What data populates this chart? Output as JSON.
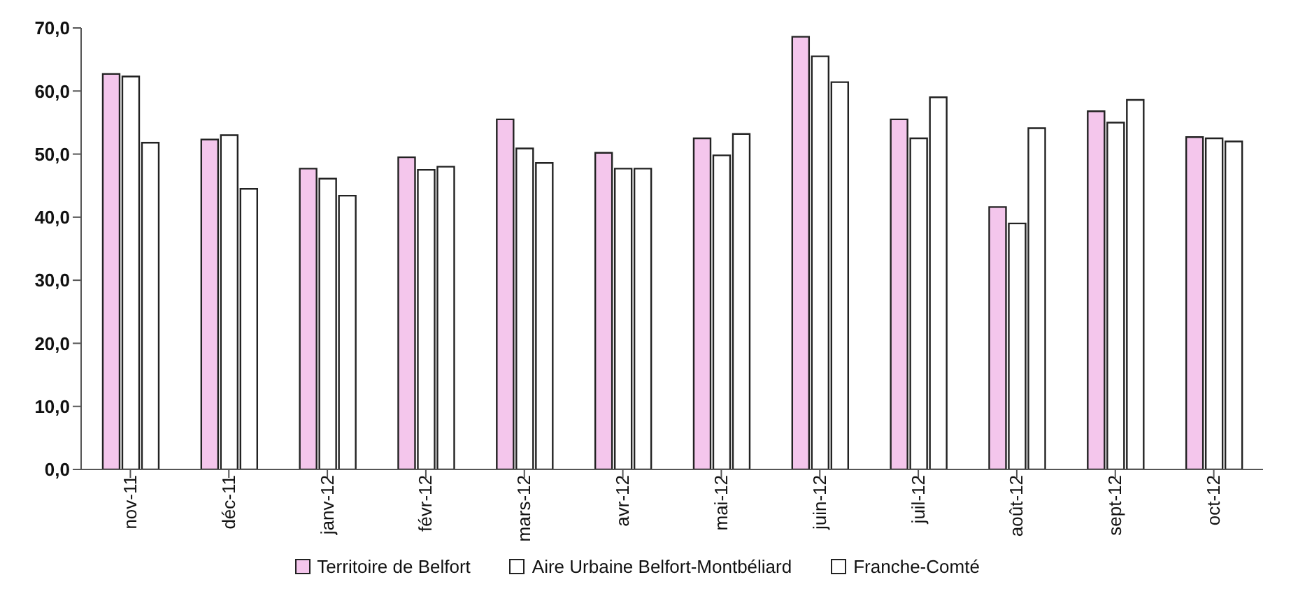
{
  "chart_data": {
    "type": "bar",
    "categories": [
      "nov-11",
      "déc-11",
      "janv-12",
      "févr-12",
      "mars-12",
      "avr-12",
      "mai-12",
      "juin-12",
      "juil-12",
      "août-12",
      "sept-12",
      "oct-12"
    ],
    "series": [
      {
        "name": "Territoire de Belfort",
        "color": "#f4c6ec",
        "values": [
          62.7,
          52.3,
          47.7,
          49.5,
          55.5,
          50.2,
          52.5,
          68.6,
          55.5,
          41.6,
          56.8,
          52.7
        ]
      },
      {
        "name": "Aire Urbaine Belfort-Montbéliard",
        "color": "#ffffff",
        "values": [
          62.3,
          53.0,
          46.1,
          47.5,
          50.9,
          47.7,
          49.8,
          65.5,
          52.5,
          39.0,
          55.0,
          52.5
        ]
      },
      {
        "name": "Franche-Comté",
        "color": "#ffffff",
        "values": [
          51.8,
          44.5,
          43.4,
          48.0,
          48.6,
          47.7,
          53.2,
          61.4,
          59.0,
          54.1,
          58.6,
          52.0
        ]
      }
    ],
    "ylim": [
      0,
      70
    ],
    "yticks": [
      {
        "value": 0,
        "label": "0,0"
      },
      {
        "value": 10,
        "label": "10,0"
      },
      {
        "value": 20,
        "label": "20,0"
      },
      {
        "value": 30,
        "label": "30,0"
      },
      {
        "value": 40,
        "label": "40,0"
      },
      {
        "value": 50,
        "label": "50,0"
      },
      {
        "value": 60,
        "label": "60,0"
      },
      {
        "value": 70,
        "label": "70,0"
      }
    ],
    "grid": false,
    "legend": "bottom"
  }
}
